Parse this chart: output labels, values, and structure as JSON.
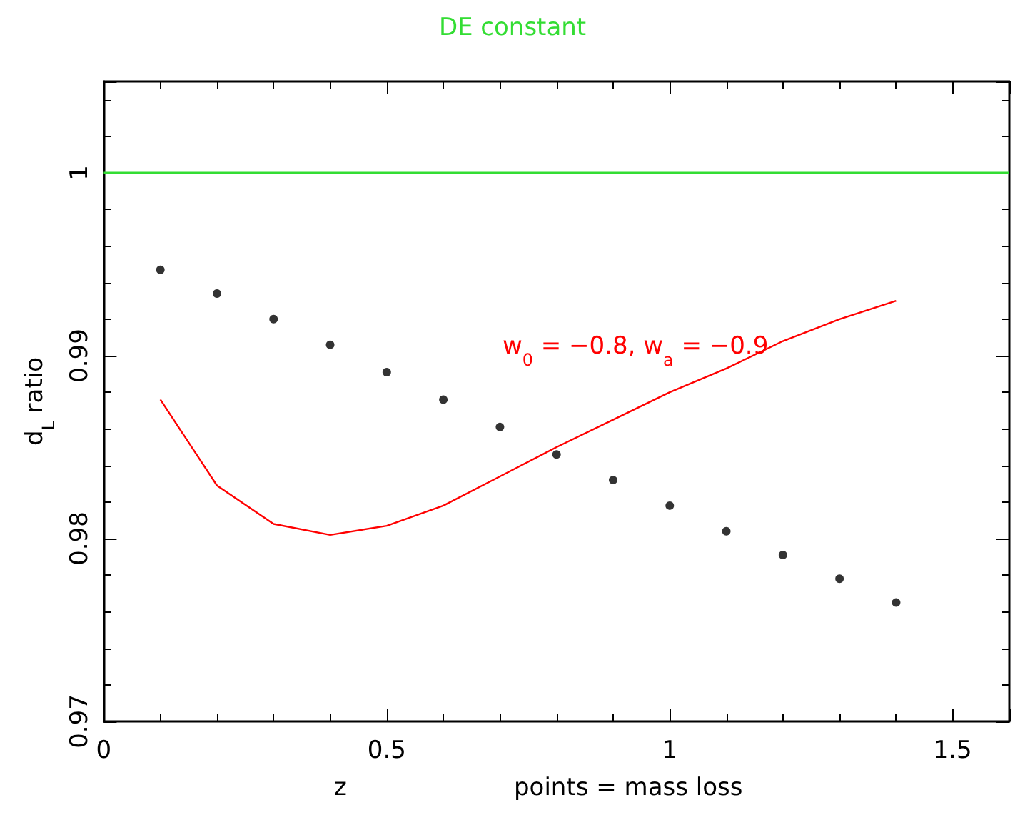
{
  "chart_data": {
    "type": "scatter",
    "title": "DE constant",
    "xlabel": "z",
    "ylabel": "d$_{L}$ ratio",
    "annotations": [
      "w$_{0}$ = −0.8, w$_{a}$ = −0.9",
      "points = mass loss"
    ],
    "x": [
      0.1,
      0.2,
      0.3,
      0.4,
      0.5,
      0.6,
      0.7,
      0.8,
      0.9,
      1.0,
      1.1,
      1.2,
      1.3,
      1.4
    ],
    "series": [
      {
        "color": "#000000",
        "marker": "circle",
        "values": [
          0.9947,
          0.9934,
          0.992,
          0.9906,
          0.9891,
          0.9876,
          0.9861,
          0.9846,
          0.9832,
          0.9818,
          0.9804,
          0.9791,
          0.9778,
          0.9765
        ]
      },
      {
        "type": "line",
        "color": "#ff0000",
        "marker": "none",
        "values": [
          0.9876,
          0.9829,
          0.9808,
          0.9802,
          0.9807,
          0.9818,
          0.9834,
          0.985,
          0.9865,
          0.988,
          0.9893,
          0.9908,
          0.992,
          0.993
        ]
      }
    ],
    "ref_lines": [
      {
        "axis": "y",
        "value": 1,
        "color": "#33dd33"
      }
    ],
    "xlim": [
      0,
      1.6
    ],
    "xticks": [
      0,
      0.5,
      1,
      1.5
    ],
    "ylim": [
      0.97,
      1.005
    ],
    "yticks": [
      0.97,
      0.98,
      0.99,
      1
    ],
    "grid": false
  }
}
